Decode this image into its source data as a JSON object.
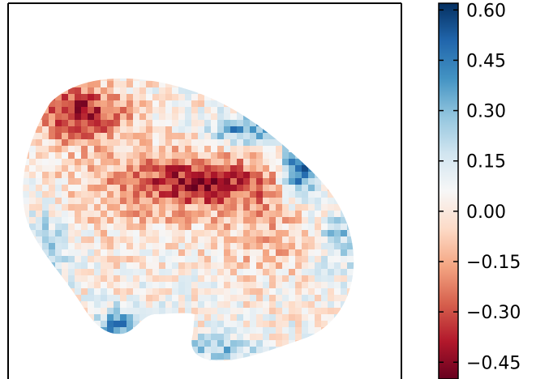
{
  "chart_data": {
    "type": "heatmap",
    "title": "",
    "xlabel": "",
    "ylabel": "",
    "colormap": "RdBu (diverging: dark red → white → dark blue)",
    "color_stops": [
      "#67001f",
      "#b2182b",
      "#d6604d",
      "#f4a582",
      "#fddbc7",
      "#f7f7f7",
      "#d1e5f0",
      "#92c5de",
      "#4393c3",
      "#2166ac",
      "#053061"
    ],
    "vmin": -0.5,
    "vmax": 0.62,
    "colorbar": {
      "ticks": [
        0.6,
        0.45,
        0.3,
        0.15,
        0.0,
        -0.15,
        -0.3,
        -0.45
      ],
      "tick_labels": [
        "0.60",
        "0.45",
        "0.30",
        "0.15",
        "0.00",
        "−0.15",
        "−0.30",
        "−0.45"
      ]
    },
    "grid": false,
    "axes_ticks_visible": false,
    "description_of_values": "Irregular tissue-shaped region of ~0.1 correlation-like values: strong negative (red) ridge across upper-left/center, positive (blue) values along the outer rim, especially the upper-right edge (~0.6) and bottom-left corner (~0.45)."
  }
}
